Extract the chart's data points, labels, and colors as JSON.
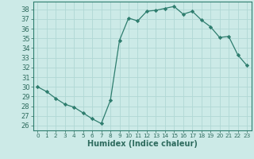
{
  "x": [
    0,
    1,
    2,
    3,
    4,
    5,
    6,
    7,
    8,
    9,
    10,
    11,
    12,
    13,
    14,
    15,
    16,
    17,
    18,
    19,
    20,
    21,
    22,
    23
  ],
  "y": [
    30,
    29.5,
    28.8,
    28.2,
    27.9,
    27.3,
    26.7,
    26.2,
    28.6,
    34.8,
    37.1,
    36.8,
    37.8,
    37.9,
    38.1,
    38.3,
    37.5,
    37.8,
    36.9,
    36.2,
    35.1,
    35.2,
    33.3,
    32.2
  ],
  "line_color": "#2e7d6e",
  "marker": "D",
  "marker_size": 2.2,
  "bg_color": "#cceae7",
  "grid_color": "#b0d8d4",
  "xlabel": "Humidex (Indice chaleur)",
  "ylim": [
    25.5,
    38.8
  ],
  "xlim": [
    -0.5,
    23.5
  ],
  "yticks": [
    26,
    27,
    28,
    29,
    30,
    31,
    32,
    33,
    34,
    35,
    36,
    37,
    38
  ],
  "xticks": [
    0,
    1,
    2,
    3,
    4,
    5,
    6,
    7,
    8,
    9,
    10,
    11,
    12,
    13,
    14,
    15,
    16,
    17,
    18,
    19,
    20,
    21,
    22,
    23
  ],
  "tick_color": "#2e6b5e",
  "label_fontsize": 7,
  "ytick_fontsize": 6,
  "xtick_fontsize": 5.2,
  "spine_color": "#2e7d6e"
}
